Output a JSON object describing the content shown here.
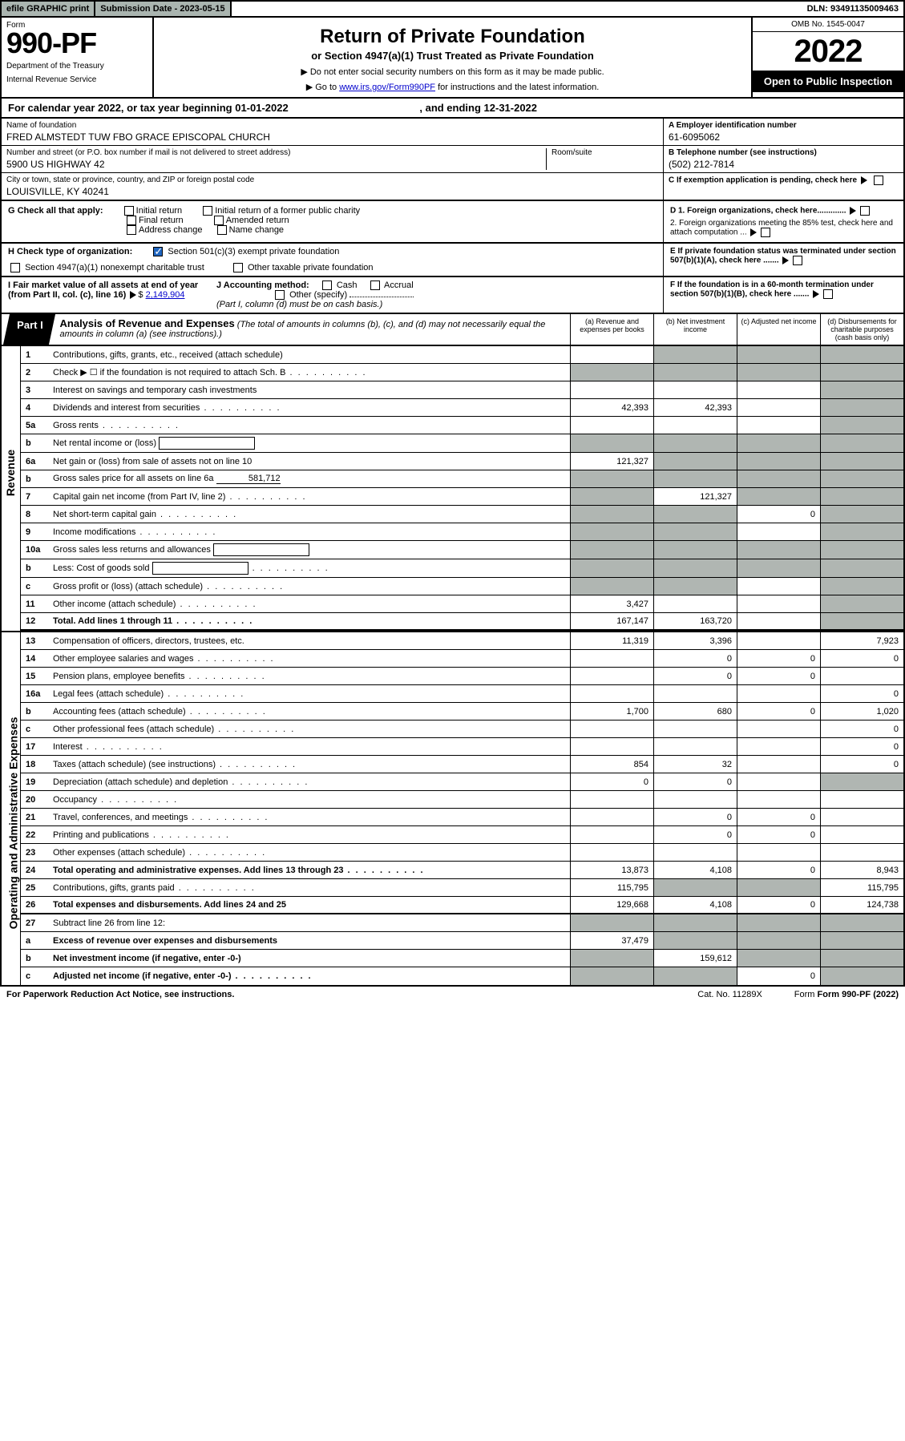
{
  "top": {
    "efile": "efile GRAPHIC print",
    "sub_date_lbl": "Submission Date - ",
    "sub_date": "2023-05-15",
    "dln": "DLN: 93491135009463"
  },
  "header": {
    "form_word": "Form",
    "form_num": "990-PF",
    "dept": "Department of the Treasury",
    "irs": "Internal Revenue Service",
    "title": "Return of Private Foundation",
    "subtitle": "or Section 4947(a)(1) Trust Treated as Private Foundation",
    "inst1": "▶ Do not enter social security numbers on this form as it may be made public.",
    "inst2_pre": "▶ Go to ",
    "inst2_link": "www.irs.gov/Form990PF",
    "inst2_post": " for instructions and the latest information.",
    "omb": "OMB No. 1545-0047",
    "year": "2022",
    "open": "Open to Public Inspection"
  },
  "cal": {
    "line": "For calendar year 2022, or tax year beginning 01-01-2022",
    "ending": ", and ending 12-31-2022"
  },
  "info": {
    "name_lbl": "Name of foundation",
    "name_val": "FRED ALMSTEDT TUW FBO GRACE EPISCOPAL CHURCH",
    "addr_lbl": "Number and street (or P.O. box number if mail is not delivered to street address)",
    "room_lbl": "Room/suite",
    "addr_val": "5900 US HIGHWAY 42",
    "city_lbl": "City or town, state or province, country, and ZIP or foreign postal code",
    "city_val": "LOUISVILLE, KY  40241",
    "ein_lbl": "A Employer identification number",
    "ein_val": "61-6095062",
    "tel_lbl": "B Telephone number (see instructions)",
    "tel_val": "(502) 212-7814",
    "c_lbl": "C If exemption application is pending, check here"
  },
  "g": {
    "label": "G Check all that apply:",
    "opts": [
      "Initial return",
      "Initial return of a former public charity",
      "Final return",
      "Amended return",
      "Address change",
      "Name change"
    ]
  },
  "d": {
    "d1": "D 1. Foreign organizations, check here.............",
    "d2": "2. Foreign organizations meeting the 85% test, check here and attach computation ..."
  },
  "h": {
    "label": "H Check type of organization:",
    "o1": "Section 501(c)(3) exempt private foundation",
    "o2": "Section 4947(a)(1) nonexempt charitable trust",
    "o3": "Other taxable private foundation"
  },
  "e": {
    "txt": "E  If private foundation status was terminated under section 507(b)(1)(A), check here ......."
  },
  "i": {
    "label": "I Fair market value of all assets at end of year (from Part II, col. (c), line 16)",
    "val": "2,149,904"
  },
  "j": {
    "label": "J Accounting method:",
    "o1": "Cash",
    "o2": "Accrual",
    "o3": "Other (specify)",
    "note": "(Part I, column (d) must be on cash basis.)"
  },
  "f": {
    "txt": "F  If the foundation is in a 60-month termination under section 507(b)(1)(B), check here ......."
  },
  "part1": {
    "tab": "Part I",
    "title": "Analysis of Revenue and Expenses",
    "note": "(The total of amounts in columns (b), (c), and (d) may not necessarily equal the amounts in column (a) (see instructions).)",
    "cols": [
      "(a)  Revenue and expenses per books",
      "(b)  Net investment income",
      "(c)  Adjusted net income",
      "(d)  Disbursements for charitable purposes (cash basis only)"
    ]
  },
  "side": {
    "rev": "Revenue",
    "exp": "Operating and Administrative Expenses"
  },
  "rows_rev": [
    {
      "n": "1",
      "d": "Contributions, gifts, grants, etc., received (attach schedule)",
      "a": "",
      "b": "s",
      "c": "s",
      "dd": "s"
    },
    {
      "n": "2",
      "d": "Check ▶ ☐ if the foundation is not required to attach Sch. B",
      "a": "s",
      "b": "s",
      "c": "s",
      "dd": "s",
      "dots": true
    },
    {
      "n": "3",
      "d": "Interest on savings and temporary cash investments",
      "a": "",
      "b": "",
      "c": "",
      "dd": "s"
    },
    {
      "n": "4",
      "d": "Dividends and interest from securities",
      "a": "42,393",
      "b": "42,393",
      "c": "",
      "dd": "s",
      "dots": true
    },
    {
      "n": "5a",
      "d": "Gross rents",
      "a": "",
      "b": "",
      "c": "",
      "dd": "s",
      "dots": true
    },
    {
      "n": "b",
      "d": "Net rental income or (loss)",
      "a": "s",
      "b": "s",
      "c": "s",
      "dd": "s",
      "inlinebox": ""
    },
    {
      "n": "6a",
      "d": "Net gain or (loss) from sale of assets not on line 10",
      "a": "121,327",
      "b": "s",
      "c": "s",
      "dd": "s"
    },
    {
      "n": "b",
      "d": "Gross sales price for all assets on line 6a",
      "a": "s",
      "b": "s",
      "c": "s",
      "dd": "s",
      "inlineval": "581,712"
    },
    {
      "n": "7",
      "d": "Capital gain net income (from Part IV, line 2)",
      "a": "s",
      "b": "121,327",
      "c": "s",
      "dd": "s",
      "dots": true
    },
    {
      "n": "8",
      "d": "Net short-term capital gain",
      "a": "s",
      "b": "s",
      "c": "0",
      "dd": "s",
      "dots": true
    },
    {
      "n": "9",
      "d": "Income modifications",
      "a": "s",
      "b": "s",
      "c": "",
      "dd": "s",
      "dots": true
    },
    {
      "n": "10a",
      "d": "Gross sales less returns and allowances",
      "a": "s",
      "b": "s",
      "c": "s",
      "dd": "s",
      "inlinebox": ""
    },
    {
      "n": "b",
      "d": "Less: Cost of goods sold",
      "a": "s",
      "b": "s",
      "c": "s",
      "dd": "s",
      "inlinebox": "",
      "dots": true
    },
    {
      "n": "c",
      "d": "Gross profit or (loss) (attach schedule)",
      "a": "s",
      "b": "s",
      "c": "",
      "dd": "s",
      "dots": true
    },
    {
      "n": "11",
      "d": "Other income (attach schedule)",
      "a": "3,427",
      "b": "",
      "c": "",
      "dd": "s",
      "dots": true
    },
    {
      "n": "12",
      "d": "Total. Add lines 1 through 11",
      "a": "167,147",
      "b": "163,720",
      "c": "",
      "dd": "s",
      "bold": true,
      "thick": true,
      "dots": true
    }
  ],
  "rows_exp": [
    {
      "n": "13",
      "d": "Compensation of officers, directors, trustees, etc.",
      "a": "11,319",
      "b": "3,396",
      "c": "",
      "dd": "7,923"
    },
    {
      "n": "14",
      "d": "Other employee salaries and wages",
      "a": "",
      "b": "0",
      "c": "0",
      "dd": "0",
      "dots": true
    },
    {
      "n": "15",
      "d": "Pension plans, employee benefits",
      "a": "",
      "b": "0",
      "c": "0",
      "dd": "",
      "dots": true
    },
    {
      "n": "16a",
      "d": "Legal fees (attach schedule)",
      "a": "",
      "b": "",
      "c": "",
      "dd": "0",
      "dots": true
    },
    {
      "n": "b",
      "d": "Accounting fees (attach schedule)",
      "a": "1,700",
      "b": "680",
      "c": "0",
      "dd": "1,020",
      "dots": true
    },
    {
      "n": "c",
      "d": "Other professional fees (attach schedule)",
      "a": "",
      "b": "",
      "c": "",
      "dd": "0",
      "dots": true
    },
    {
      "n": "17",
      "d": "Interest",
      "a": "",
      "b": "",
      "c": "",
      "dd": "0",
      "dots": true
    },
    {
      "n": "18",
      "d": "Taxes (attach schedule) (see instructions)",
      "a": "854",
      "b": "32",
      "c": "",
      "dd": "0",
      "dots": true
    },
    {
      "n": "19",
      "d": "Depreciation (attach schedule) and depletion",
      "a": "0",
      "b": "0",
      "c": "",
      "dd": "s",
      "dots": true
    },
    {
      "n": "20",
      "d": "Occupancy",
      "a": "",
      "b": "",
      "c": "",
      "dd": "",
      "dots": true
    },
    {
      "n": "21",
      "d": "Travel, conferences, and meetings",
      "a": "",
      "b": "0",
      "c": "0",
      "dd": "",
      "dots": true
    },
    {
      "n": "22",
      "d": "Printing and publications",
      "a": "",
      "b": "0",
      "c": "0",
      "dd": "",
      "dots": true
    },
    {
      "n": "23",
      "d": "Other expenses (attach schedule)",
      "a": "",
      "b": "",
      "c": "",
      "dd": "",
      "dots": true
    },
    {
      "n": "24",
      "d": "Total operating and administrative expenses. Add lines 13 through 23",
      "a": "13,873",
      "b": "4,108",
      "c": "0",
      "dd": "8,943",
      "bold": true,
      "dots": true
    },
    {
      "n": "25",
      "d": "Contributions, gifts, grants paid",
      "a": "115,795",
      "b": "s",
      "c": "s",
      "dd": "115,795",
      "dots": true
    },
    {
      "n": "26",
      "d": "Total expenses and disbursements. Add lines 24 and 25",
      "a": "129,668",
      "b": "4,108",
      "c": "0",
      "dd": "124,738",
      "bold": true,
      "thick": true
    },
    {
      "n": "27",
      "d": "Subtract line 26 from line 12:",
      "a": "s",
      "b": "s",
      "c": "s",
      "dd": "s"
    },
    {
      "n": "a",
      "d": "Excess of revenue over expenses and disbursements",
      "a": "37,479",
      "b": "s",
      "c": "s",
      "dd": "s",
      "bold": true
    },
    {
      "n": "b",
      "d": "Net investment income (if negative, enter -0-)",
      "a": "s",
      "b": "159,612",
      "c": "s",
      "dd": "s",
      "bold": true
    },
    {
      "n": "c",
      "d": "Adjusted net income (if negative, enter -0-)",
      "a": "s",
      "b": "s",
      "c": "0",
      "dd": "s",
      "bold": true,
      "dots": true
    }
  ],
  "footer": {
    "pra": "For Paperwork Reduction Act Notice, see instructions.",
    "cat": "Cat. No. 11289X",
    "form": "Form 990-PF (2022)"
  },
  "colors": {
    "shade": "#b0b6b2",
    "link": "#0000cc",
    "check": "#2066c0"
  }
}
